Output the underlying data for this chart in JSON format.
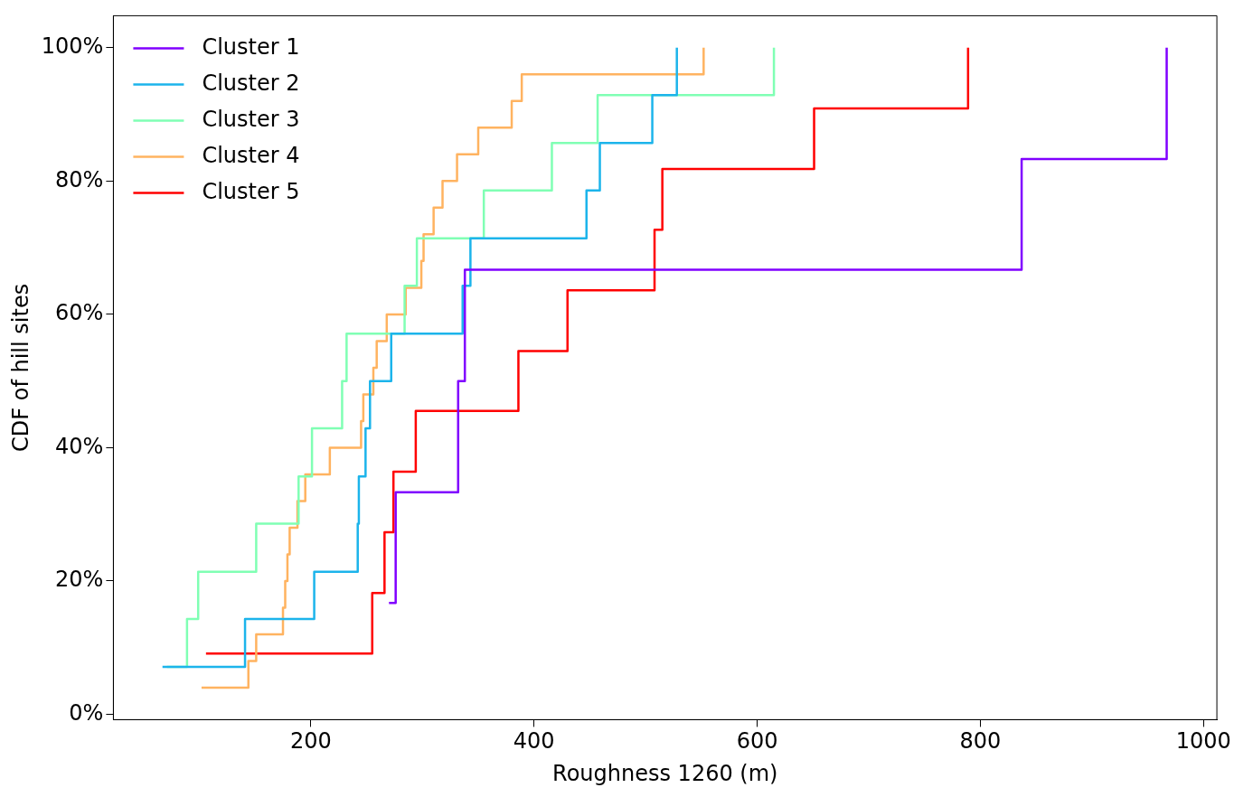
{
  "chart_data": {
    "type": "step",
    "xlabel": "Roughness 1260 (m)",
    "ylabel": "CDF of hill sites",
    "xlim": [
      23,
      1012
    ],
    "xticks": [
      200,
      400,
      600,
      800,
      1000
    ],
    "ylim": [
      -0.8,
      104.8
    ],
    "yticks": [
      {
        "value": 0,
        "label": "0%"
      },
      {
        "value": 20,
        "label": "20%"
      },
      {
        "value": 40,
        "label": "40%"
      },
      {
        "value": 60,
        "label": "60%"
      },
      {
        "value": 80,
        "label": "80%"
      },
      {
        "value": 100,
        "label": "100%"
      }
    ],
    "legend": "top left",
    "grid": false,
    "series": [
      {
        "name": "Cluster 1",
        "color": "#8000ff",
        "x": [
          270,
          276,
          332,
          338,
          837,
          967
        ],
        "values": [
          16.7,
          33.3,
          50,
          66.7,
          83.3,
          100
        ]
      },
      {
        "name": "Cluster 2",
        "color": "#1cb4eb",
        "x": [
          67,
          141,
          203,
          242,
          243,
          249,
          253,
          272,
          336,
          343,
          447,
          459,
          506,
          528
        ],
        "values": [
          7.1,
          14.3,
          21.4,
          28.6,
          35.7,
          42.9,
          50,
          57.1,
          64.3,
          71.4,
          78.6,
          85.7,
          92.9,
          100
        ]
      },
      {
        "name": "Cluster 3",
        "color": "#80ffb4",
        "x": [
          71,
          89,
          99,
          151,
          189,
          201,
          228,
          232,
          284,
          295,
          355,
          416,
          457,
          615
        ],
        "values": [
          7.1,
          14.3,
          21.4,
          28.6,
          35.7,
          42.9,
          50,
          57.1,
          64.3,
          71.4,
          78.6,
          85.7,
          92.9,
          100
        ]
      },
      {
        "name": "Cluster 4",
        "color": "#ffb360",
        "x": [
          102,
          144,
          151,
          175,
          177,
          179,
          181,
          188,
          195,
          217,
          245,
          247,
          256,
          259,
          268,
          285,
          299,
          301,
          310,
          318,
          331,
          350,
          380,
          389,
          552
        ],
        "values": [
          4,
          8,
          12,
          16,
          20,
          24,
          28,
          32,
          36,
          40,
          44,
          48,
          52,
          56,
          60,
          64,
          68,
          72,
          76,
          80,
          84,
          88,
          92,
          96,
          100
        ]
      },
      {
        "name": "Cluster 5",
        "color": "#ff0000",
        "x": [
          106,
          255,
          266,
          274,
          294,
          386,
          430,
          508,
          515,
          651,
          789
        ],
        "values": [
          9.1,
          18.2,
          27.3,
          36.4,
          45.5,
          54.5,
          63.6,
          72.7,
          81.8,
          90.9,
          100
        ]
      }
    ]
  }
}
